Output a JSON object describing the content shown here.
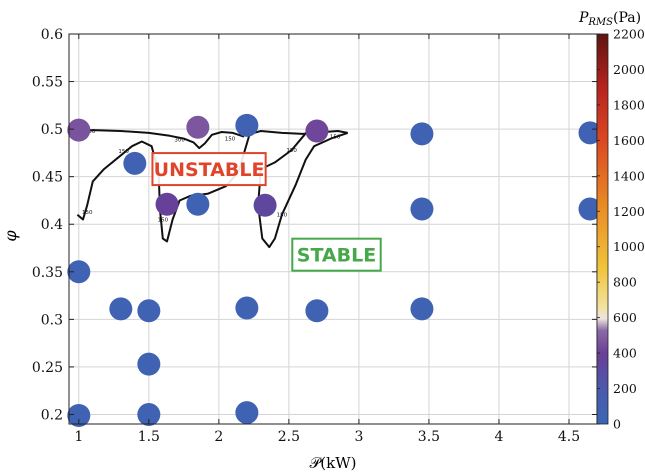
{
  "chart_data": {
    "type": "scatter",
    "xlabel": "𝒫(kW)",
    "ylabel": "φ",
    "xlim": [
      0.93,
      4.7
    ],
    "ylim": [
      0.19,
      0.6
    ],
    "xticks": [
      1,
      1.5,
      2,
      2.5,
      3,
      3.5,
      4,
      4.5
    ],
    "xtick_labels": [
      "1",
      "1.5",
      "2",
      "2.5",
      "3",
      "3.5",
      "4",
      "4.5"
    ],
    "yticks": [
      0.2,
      0.25,
      0.3,
      0.35,
      0.4,
      0.45,
      0.5,
      0.55,
      0.6
    ],
    "ytick_labels": [
      "0.2",
      "0.25",
      "0.3",
      "0.35",
      "0.4",
      "0.45",
      "0.5",
      "0.55",
      "0.6"
    ],
    "grid": true,
    "points": [
      {
        "x": 1.0,
        "y": 0.199,
        "p": 60
      },
      {
        "x": 1.5,
        "y": 0.2,
        "p": 60
      },
      {
        "x": 2.2,
        "y": 0.202,
        "p": 60
      },
      {
        "x": 1.5,
        "y": 0.253,
        "p": 60
      },
      {
        "x": 1.3,
        "y": 0.311,
        "p": 60
      },
      {
        "x": 1.5,
        "y": 0.309,
        "p": 60
      },
      {
        "x": 2.2,
        "y": 0.312,
        "p": 60
      },
      {
        "x": 2.7,
        "y": 0.309,
        "p": 60
      },
      {
        "x": 3.45,
        "y": 0.311,
        "p": 60
      },
      {
        "x": 1.0,
        "y": 0.35,
        "p": 60
      },
      {
        "x": 1.63,
        "y": 0.421,
        "p": 380
      },
      {
        "x": 1.85,
        "y": 0.421,
        "p": 60
      },
      {
        "x": 2.33,
        "y": 0.42,
        "p": 330
      },
      {
        "x": 3.45,
        "y": 0.416,
        "p": 60
      },
      {
        "x": 4.65,
        "y": 0.416,
        "p": 60
      },
      {
        "x": 1.4,
        "y": 0.464,
        "p": 80
      },
      {
        "x": 1.0,
        "y": 0.499,
        "p": 460
      },
      {
        "x": 1.85,
        "y": 0.502,
        "p": 470
      },
      {
        "x": 2.2,
        "y": 0.504,
        "p": 60
      },
      {
        "x": 2.7,
        "y": 0.498,
        "p": 420
      },
      {
        "x": 3.45,
        "y": 0.495,
        "p": 60
      },
      {
        "x": 4.65,
        "y": 0.496,
        "p": 60
      }
    ],
    "contour": {
      "level_label": "150",
      "level_label_alt": "300",
      "paths": [
        [
          [
            0.99,
            0.41
          ],
          [
            1.03,
            0.405
          ],
          [
            1.06,
            0.42
          ],
          [
            1.1,
            0.445
          ],
          [
            1.18,
            0.458
          ],
          [
            1.28,
            0.47
          ],
          [
            1.38,
            0.482
          ],
          [
            1.45,
            0.487
          ],
          [
            1.52,
            0.482
          ],
          [
            1.57,
            0.455
          ],
          [
            1.58,
            0.415
          ],
          [
            1.6,
            0.385
          ],
          [
            1.63,
            0.382
          ],
          [
            1.67,
            0.405
          ],
          [
            1.72,
            0.425
          ],
          [
            1.8,
            0.43
          ],
          [
            1.92,
            0.432
          ],
          [
            2.05,
            0.44
          ],
          [
            2.14,
            0.455
          ],
          [
            2.18,
            0.475
          ],
          [
            2.22,
            0.495
          ],
          [
            2.3,
            0.498
          ],
          [
            2.45,
            0.496
          ],
          [
            2.6,
            0.495
          ],
          [
            2.75,
            0.497
          ],
          [
            2.85,
            0.498
          ],
          [
            2.92,
            0.496
          ]
        ],
        [
          [
            2.92,
            0.496
          ],
          [
            2.8,
            0.49
          ],
          [
            2.68,
            0.482
          ],
          [
            2.62,
            0.468
          ],
          [
            2.55,
            0.442
          ],
          [
            2.45,
            0.41
          ],
          [
            2.4,
            0.385
          ],
          [
            2.36,
            0.376
          ],
          [
            2.31,
            0.385
          ],
          [
            2.28,
            0.42
          ],
          [
            2.3,
            0.458
          ],
          [
            2.4,
            0.465
          ],
          [
            2.52,
            0.478
          ],
          [
            2.6,
            0.492
          ],
          [
            2.65,
            0.501
          ],
          [
            2.68,
            0.504
          ]
        ],
        [
          [
            0.99,
            0.497
          ],
          [
            1.1,
            0.499
          ],
          [
            1.3,
            0.498
          ],
          [
            1.5,
            0.496
          ],
          [
            1.65,
            0.493
          ],
          [
            1.75,
            0.49
          ],
          [
            1.82,
            0.486
          ],
          [
            1.86,
            0.48
          ],
          [
            1.9,
            0.485
          ],
          [
            1.95,
            0.494
          ],
          [
            2.02,
            0.497
          ],
          [
            2.1,
            0.496
          ],
          [
            2.18,
            0.492
          ]
        ]
      ],
      "labels": [
        {
          "text": "150",
          "x": 1.06,
          "y": 0.413
        },
        {
          "text": "150",
          "x": 1.32,
          "y": 0.477
        },
        {
          "text": "150",
          "x": 1.6,
          "y": 0.405
        },
        {
          "text": "300",
          "x": 1.08,
          "y": 0.498
        },
        {
          "text": "300",
          "x": 1.72,
          "y": 0.489
        },
        {
          "text": "150",
          "x": 2.08,
          "y": 0.49
        },
        {
          "text": "150",
          "x": 2.45,
          "y": 0.41
        },
        {
          "text": "150",
          "x": 2.52,
          "y": 0.478
        },
        {
          "text": "150",
          "x": 2.83,
          "y": 0.492
        }
      ]
    },
    "annotations": [
      {
        "text": "UNSTABLE",
        "x": 1.93,
        "y": 0.458,
        "color": "#e0442b"
      },
      {
        "text": "STABLE",
        "x": 2.84,
        "y": 0.368,
        "color": "#46a84a"
      }
    ],
    "colorbar": {
      "title": "P_RMS(Pa)",
      "title_main": "P",
      "title_sub": "RMS",
      "title_unit": "(Pa)",
      "min": 0,
      "max": 2200,
      "ticks": [
        0,
        200,
        400,
        600,
        800,
        1000,
        1200,
        1400,
        1600,
        1800,
        2000,
        2200
      ],
      "tick_labels": [
        "0",
        "200",
        "400",
        "600",
        "800",
        "1000",
        "1200",
        "1400",
        "1600",
        "1800",
        "2000",
        "2200"
      ]
    }
  }
}
